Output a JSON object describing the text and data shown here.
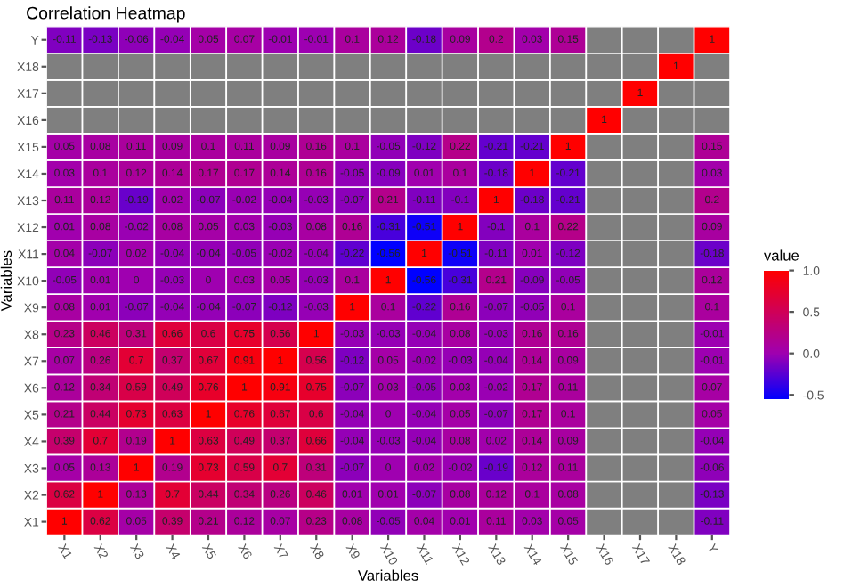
{
  "chart_data": {
    "type": "heatmap",
    "title": "Correlation Heatmap",
    "xlabel": "Variables",
    "ylabel": "Variables",
    "legend_title": "value",
    "categories": [
      "X1",
      "X2",
      "X3",
      "X4",
      "X5",
      "X6",
      "X7",
      "X8",
      "X9",
      "X10",
      "X11",
      "X12",
      "X13",
      "X14",
      "X15",
      "X16",
      "X17",
      "X18",
      "Y"
    ],
    "y_categories": [
      "Y",
      "X18",
      "X17",
      "X16",
      "X15",
      "X14",
      "X13",
      "X12",
      "X11",
      "X10",
      "X9",
      "X8",
      "X7",
      "X6",
      "X5",
      "X4",
      "X3",
      "X2",
      "X1"
    ],
    "cells": [
      [
        -0.11,
        -0.13,
        -0.06,
        -0.04,
        0.05,
        0.07,
        -0.01,
        -0.01,
        0.1,
        0.12,
        -0.18,
        0.09,
        0.2,
        0.03,
        0.15,
        null,
        null,
        null,
        1
      ],
      [
        null,
        null,
        null,
        null,
        null,
        null,
        null,
        null,
        null,
        null,
        null,
        null,
        null,
        null,
        null,
        null,
        null,
        1,
        null
      ],
      [
        null,
        null,
        null,
        null,
        null,
        null,
        null,
        null,
        null,
        null,
        null,
        null,
        null,
        null,
        null,
        null,
        1,
        null,
        null
      ],
      [
        null,
        null,
        null,
        null,
        null,
        null,
        null,
        null,
        null,
        null,
        null,
        null,
        null,
        null,
        null,
        1,
        null,
        null,
        null
      ],
      [
        0.05,
        0.08,
        0.11,
        0.09,
        0.1,
        0.11,
        0.09,
        0.16,
        0.1,
        -0.05,
        -0.12,
        0.22,
        -0.21,
        -0.21,
        1,
        null,
        null,
        null,
        0.15
      ],
      [
        0.03,
        0.1,
        0.12,
        0.14,
        0.17,
        0.17,
        0.14,
        0.16,
        -0.05,
        -0.09,
        0.01,
        0.1,
        -0.18,
        1,
        -0.21,
        null,
        null,
        null,
        0.03
      ],
      [
        0.11,
        0.12,
        -0.19,
        0.02,
        -0.07,
        -0.02,
        -0.04,
        -0.03,
        -0.07,
        0.21,
        -0.11,
        -0.1,
        1,
        -0.18,
        -0.21,
        null,
        null,
        null,
        0.2
      ],
      [
        0.01,
        0.08,
        -0.02,
        0.08,
        0.05,
        0.03,
        -0.03,
        0.08,
        0.16,
        -0.31,
        -0.51,
        1,
        -0.1,
        0.1,
        0.22,
        null,
        null,
        null,
        0.09
      ],
      [
        0.04,
        -0.07,
        0.02,
        -0.04,
        -0.04,
        -0.05,
        -0.02,
        -0.04,
        -0.22,
        -0.56,
        1,
        -0.51,
        -0.11,
        0.01,
        -0.12,
        null,
        null,
        null,
        -0.18
      ],
      [
        -0.05,
        0.01,
        0,
        -0.03,
        0,
        0.03,
        0.05,
        -0.03,
        0.1,
        1,
        -0.56,
        -0.31,
        0.21,
        -0.09,
        -0.05,
        null,
        null,
        null,
        0.12
      ],
      [
        0.08,
        0.01,
        -0.07,
        -0.04,
        -0.04,
        -0.07,
        -0.12,
        -0.03,
        1,
        0.1,
        -0.22,
        0.16,
        -0.07,
        -0.05,
        0.1,
        null,
        null,
        null,
        0.1
      ],
      [
        0.23,
        0.46,
        0.31,
        0.66,
        0.6,
        0.75,
        0.56,
        1,
        -0.03,
        -0.03,
        -0.04,
        0.08,
        -0.03,
        0.16,
        0.16,
        null,
        null,
        null,
        -0.01
      ],
      [
        0.07,
        0.26,
        0.7,
        0.37,
        0.67,
        0.91,
        1,
        0.56,
        -0.12,
        0.05,
        -0.02,
        -0.03,
        -0.04,
        0.14,
        0.09,
        null,
        null,
        null,
        -0.01
      ],
      [
        0.12,
        0.34,
        0.59,
        0.49,
        0.76,
        1,
        0.91,
        0.75,
        -0.07,
        0.03,
        -0.05,
        0.03,
        -0.02,
        0.17,
        0.11,
        null,
        null,
        null,
        0.07
      ],
      [
        0.21,
        0.44,
        0.73,
        0.63,
        1,
        0.76,
        0.67,
        0.6,
        -0.04,
        0,
        -0.04,
        0.05,
        -0.07,
        0.17,
        0.1,
        null,
        null,
        null,
        0.05
      ],
      [
        0.39,
        0.7,
        0.19,
        1,
        0.63,
        0.49,
        0.37,
        0.66,
        -0.04,
        -0.03,
        -0.04,
        0.08,
        0.02,
        0.14,
        0.09,
        null,
        null,
        null,
        -0.04
      ],
      [
        0.05,
        0.13,
        1,
        0.19,
        0.73,
        0.59,
        0.7,
        0.31,
        -0.07,
        0,
        0.02,
        -0.02,
        -0.19,
        0.12,
        0.11,
        null,
        null,
        null,
        -0.06
      ],
      [
        0.62,
        1,
        0.13,
        0.7,
        0.44,
        0.34,
        0.26,
        0.46,
        0.01,
        0.01,
        -0.07,
        0.08,
        0.12,
        0.1,
        0.08,
        null,
        null,
        null,
        -0.13
      ],
      [
        1,
        0.62,
        0.05,
        0.39,
        0.21,
        0.12,
        0.07,
        0.23,
        0.08,
        -0.05,
        0.04,
        0.01,
        0.11,
        0.03,
        0.05,
        null,
        null,
        null,
        -0.11
      ]
    ],
    "clim": [
      -0.56,
      1
    ],
    "cticks": [
      -0.5,
      {
        "value": 0,
        "label": "0.0"
      },
      0.5,
      {
        "value": 1,
        "label": "1.0"
      }
    ],
    "colors": [
      "#0000ff",
      "#a000b0",
      "#ff0000"
    ],
    "data_labels": true
  }
}
